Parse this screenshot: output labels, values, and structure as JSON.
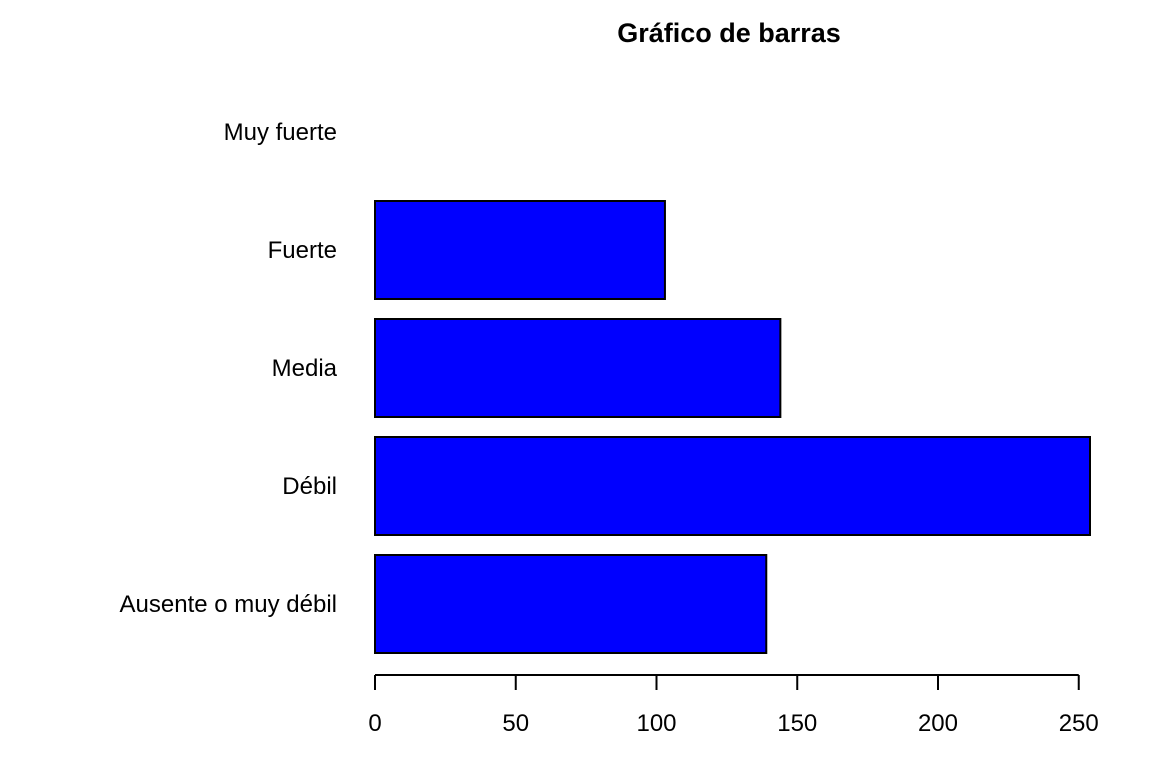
{
  "chart_data": {
    "type": "bar",
    "orientation": "horizontal",
    "title": "Gráfico de barras",
    "xlabel": "",
    "ylabel": "",
    "categories": [
      "Ausente o muy débil",
      "Débil",
      "Media",
      "Fuerte",
      "Muy fuerte"
    ],
    "values": [
      139,
      254,
      144,
      103,
      0
    ],
    "xlim": [
      0,
      254
    ],
    "x_ticks": [
      0,
      50,
      100,
      150,
      200,
      250
    ],
    "bar_color": "#0000ff",
    "grid": false,
    "legend": "none"
  }
}
